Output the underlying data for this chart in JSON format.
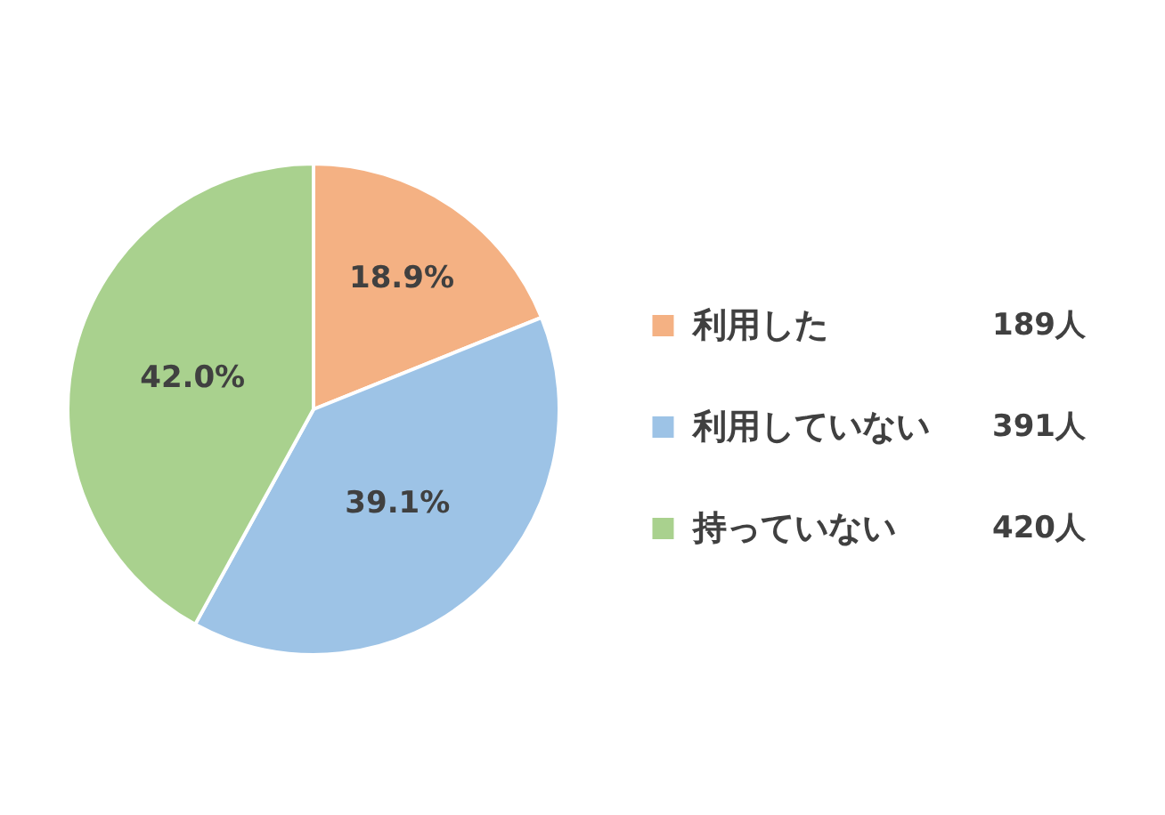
{
  "chart_data": {
    "type": "pie",
    "categories": [
      "利用した",
      "利用していない",
      "持っていない"
    ],
    "values": [
      18.9,
      39.1,
      42.0
    ],
    "value_labels": [
      "18.9%",
      "39.1%",
      "42.0%"
    ],
    "colors": [
      "#f4b183",
      "#9dc3e6",
      "#a9d18e"
    ],
    "annotations": [
      "189人",
      "391人",
      "420人"
    ],
    "legend": "right"
  }
}
